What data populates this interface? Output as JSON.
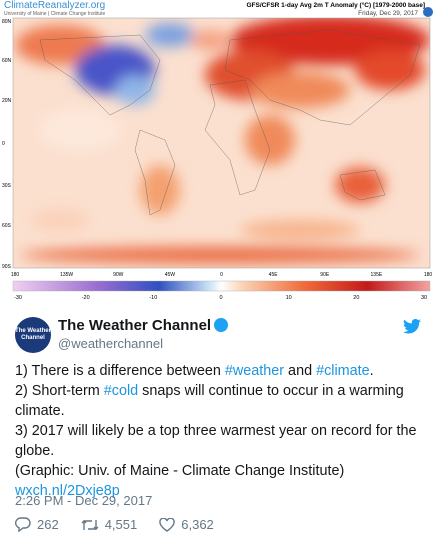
{
  "map": {
    "brand": "ClimateReanalyzer.org",
    "institution": "University of Maine | Climate Change Institute",
    "title": "GFS/CFSR 1-day Avg 2m T Anomaly (°C) [1979-2000 base]",
    "date": "Friday, Dec 29, 2017",
    "lat_labels": [
      "80N",
      "60N",
      "20N",
      "0",
      "30S",
      "60S",
      "90S"
    ],
    "lon_labels": [
      "180",
      "135W",
      "90W",
      "45W",
      "0",
      "45E",
      "90E",
      "135E",
      "180"
    ],
    "colorbar_labels": [
      "-30",
      "-20",
      "-10",
      "0",
      "10",
      "20",
      "30"
    ]
  },
  "tweet": {
    "name": "The Weather Channel",
    "handle": "@weatherchannel",
    "avatar_text": "The Weather Channel",
    "body": [
      [
        "1) There is a difference between ",
        "#weather",
        " and ",
        "#climate",
        "."
      ],
      [
        "2) Short-term ",
        "#cold",
        " snaps will continue to occur in a warming climate."
      ],
      [
        "3) 2017 will likely be a top three warmest year on record for the globe."
      ],
      [
        "(Graphic: Univ. of Maine - Climate Change Institute)"
      ]
    ],
    "link": "wxch.nl/2Dxje8p",
    "time": "2:26 PM - Dec 29, 2017",
    "replies": "262",
    "retweets": "4,551",
    "likes": "6,362"
  }
}
